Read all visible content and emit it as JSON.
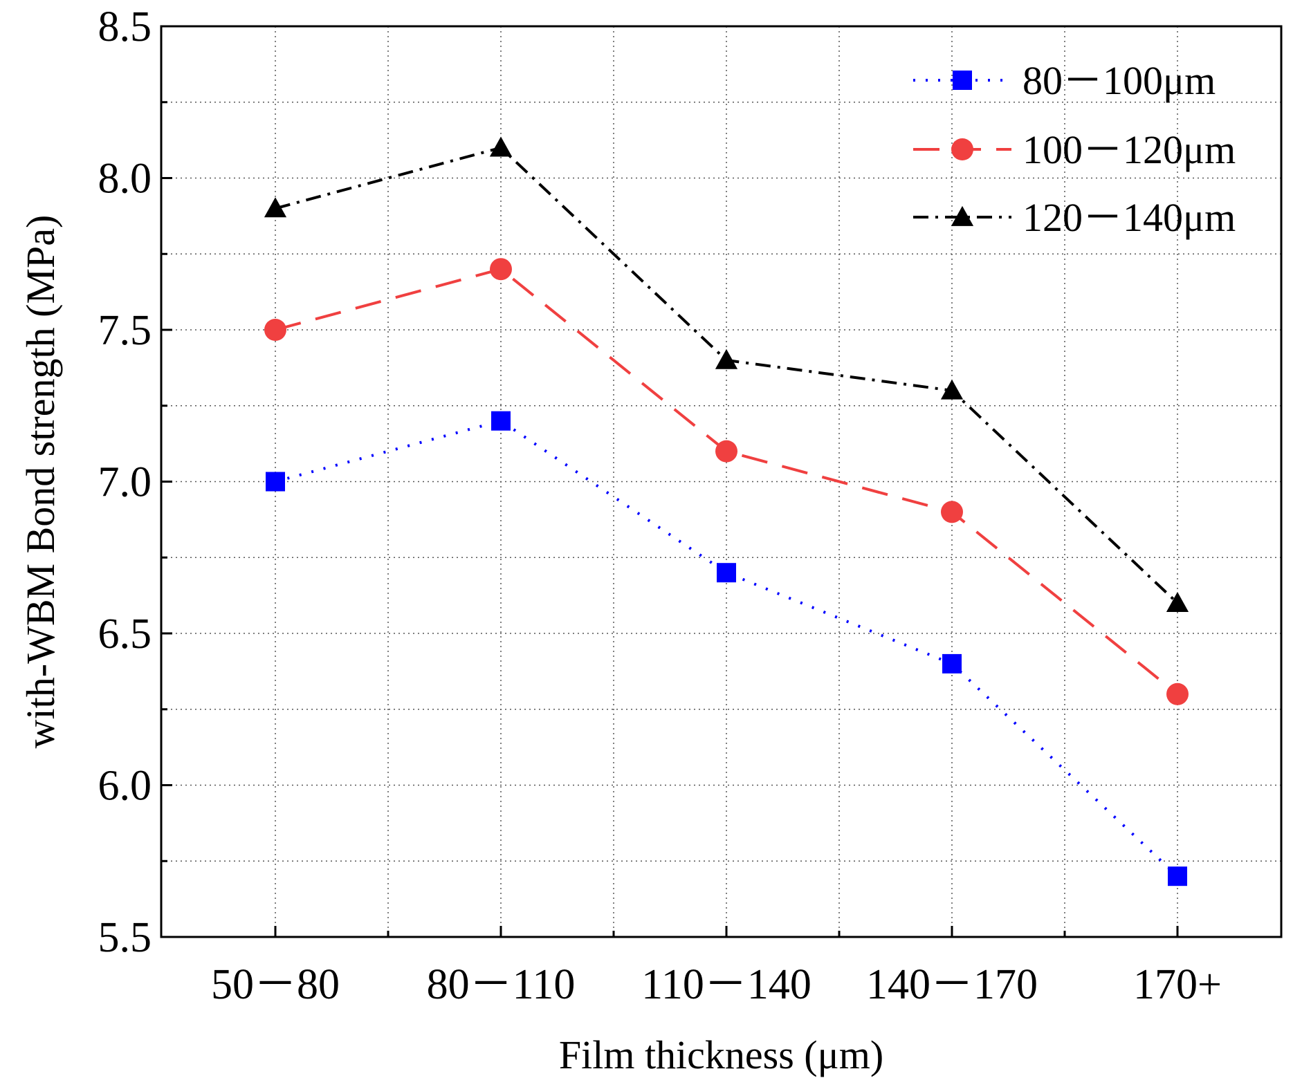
{
  "chart_data": {
    "type": "line",
    "title": "",
    "xlabel": "Film thickness (μm)",
    "ylabel": "with-WBM Bond strength (MPa)",
    "categories": [
      "50－80",
      "80－110",
      "110－140",
      "140－170",
      "170+"
    ],
    "ylim": [
      5.5,
      8.5
    ],
    "yticks": [
      5.5,
      6.0,
      6.5,
      7.0,
      7.5,
      8.0,
      8.5
    ],
    "ytick_labels": [
      "5.5",
      "6.0",
      "6.5",
      "7.0",
      "7.5",
      "8.0",
      "8.5"
    ],
    "grid": true,
    "legend_position": "top-right",
    "series": [
      {
        "name": "80－100μm",
        "values": [
          7.0,
          7.2,
          6.7,
          6.4,
          5.7
        ],
        "color": "#0000ff",
        "marker": "square",
        "line_style": "dotted"
      },
      {
        "name": "100－120μm",
        "values": [
          7.5,
          7.7,
          7.1,
          6.9,
          6.3
        ],
        "color": "#f04040",
        "marker": "circle",
        "line_style": "dashed"
      },
      {
        "name": "120－140μm",
        "values": [
          7.9,
          8.1,
          7.4,
          7.3,
          6.6
        ],
        "color": "#000000",
        "marker": "triangle",
        "line_style": "dash-dot"
      }
    ]
  }
}
